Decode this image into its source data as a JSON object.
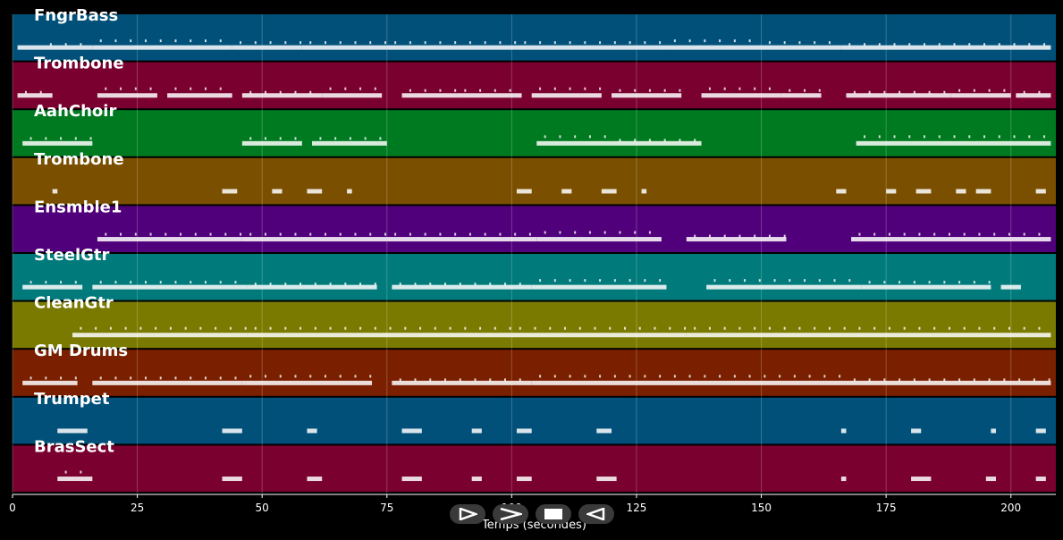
{
  "chart_data": {
    "type": "piano-roll",
    "xlabel": "Temps (secondes)",
    "xlim": [
      0,
      209
    ],
    "x_ticks": [
      0,
      25,
      50,
      75,
      100,
      125,
      150,
      175,
      200
    ],
    "grid": true,
    "background": "#000000",
    "tracks": [
      {
        "name": "FngrBass",
        "color": "#00507a",
        "segments": [
          [
            1,
            6
          ],
          [
            6,
            16
          ],
          [
            16,
            44
          ],
          [
            44,
            58
          ],
          [
            58,
            75
          ],
          [
            75,
            101
          ],
          [
            101,
            131
          ],
          [
            131,
            150
          ],
          [
            150,
            166
          ],
          [
            166,
            208
          ]
        ]
      },
      {
        "name": "Trombone",
        "color": "#7a0030",
        "segments": [
          [
            1,
            8
          ],
          [
            17,
            29
          ],
          [
            31,
            44
          ],
          [
            46,
            62
          ],
          [
            62,
            74
          ],
          [
            78,
            89
          ],
          [
            89,
            102
          ],
          [
            104,
            118
          ],
          [
            120,
            134
          ],
          [
            138,
            154
          ],
          [
            154,
            162
          ],
          [
            167,
            188
          ],
          [
            188,
            200
          ],
          [
            201,
            208
          ]
        ]
      },
      {
        "name": "AahChoir",
        "color": "#007a20",
        "segments": [
          [
            2,
            16
          ],
          [
            46,
            58
          ],
          [
            60,
            75
          ],
          [
            105,
            120
          ],
          [
            120,
            138
          ],
          [
            169,
            208
          ]
        ]
      },
      {
        "name": "Trombone",
        "color": "#7a5000",
        "segments": [
          [
            8,
            9
          ],
          [
            42,
            45
          ],
          [
            52,
            54
          ],
          [
            59,
            62
          ],
          [
            67,
            68
          ],
          [
            101,
            104
          ],
          [
            110,
            112
          ],
          [
            118,
            121
          ],
          [
            126,
            127
          ],
          [
            165,
            167
          ],
          [
            175,
            177
          ],
          [
            181,
            184
          ],
          [
            189,
            191
          ],
          [
            193,
            196
          ],
          [
            205,
            207
          ]
        ]
      },
      {
        "name": "Ensmble1",
        "color": "#50007a",
        "segments": [
          [
            17,
            46
          ],
          [
            46,
            75
          ],
          [
            75,
            105
          ],
          [
            105,
            130
          ],
          [
            135,
            155
          ],
          [
            168,
            208
          ]
        ]
      },
      {
        "name": "SteelGtr",
        "color": "#007a7a",
        "segments": [
          [
            2,
            14
          ],
          [
            16,
            47
          ],
          [
            47,
            73
          ],
          [
            76,
            104
          ],
          [
            104,
            131
          ],
          [
            139,
            170
          ],
          [
            170,
            196
          ],
          [
            198,
            202
          ]
        ]
      },
      {
        "name": "CleanGtr",
        "color": "#7a7a00",
        "segments": [
          [
            12,
            47
          ],
          [
            47,
            100
          ],
          [
            100,
            135
          ],
          [
            135,
            208
          ]
        ]
      },
      {
        "name": "GM Drums",
        "color": "#7a2000",
        "segments": [
          [
            2,
            13
          ],
          [
            16,
            46
          ],
          [
            46,
            72
          ],
          [
            76,
            104
          ],
          [
            104,
            167
          ],
          [
            167,
            208
          ]
        ]
      },
      {
        "name": "Trumpet",
        "color": "#00507a",
        "segments": [
          [
            9,
            15
          ],
          [
            42,
            46
          ],
          [
            59,
            61
          ],
          [
            78,
            82
          ],
          [
            92,
            94
          ],
          [
            101,
            104
          ],
          [
            117,
            120
          ],
          [
            166,
            167
          ],
          [
            180,
            182
          ],
          [
            196,
            197
          ],
          [
            205,
            207
          ]
        ]
      },
      {
        "name": "BrasSect",
        "color": "#7a0030",
        "segments": [
          [
            9,
            16
          ],
          [
            42,
            46
          ],
          [
            59,
            62
          ],
          [
            78,
            82
          ],
          [
            92,
            94
          ],
          [
            101,
            104
          ],
          [
            117,
            121
          ],
          [
            166,
            167
          ],
          [
            180,
            184
          ],
          [
            195,
            197
          ],
          [
            205,
            207
          ]
        ]
      }
    ]
  },
  "controls": [
    {
      "icon": "skip-forward-icon"
    },
    {
      "icon": "fast-forward-icon"
    },
    {
      "icon": "stop-icon"
    },
    {
      "icon": "rewind-icon"
    }
  ]
}
